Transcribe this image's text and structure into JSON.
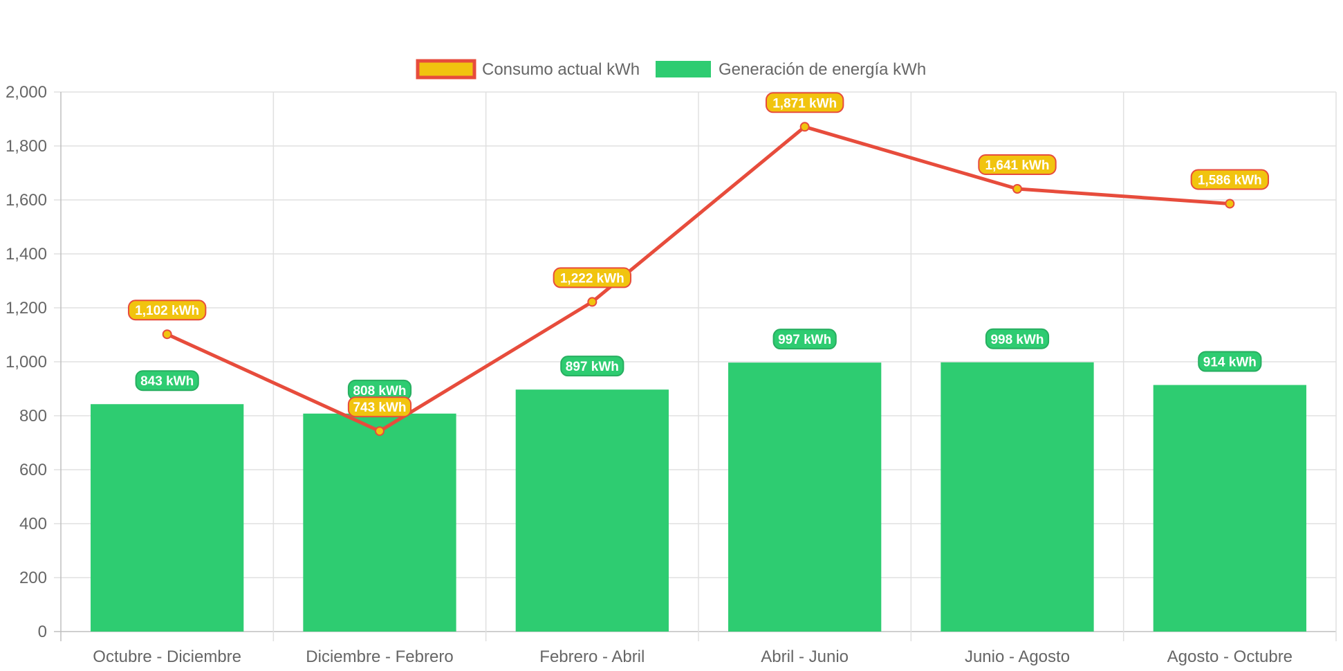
{
  "chart_data": {
    "type": "bar",
    "title": "",
    "xlabel": "",
    "ylabel": "",
    "categories": [
      "Octubre - Diciembre",
      "Diciembre - Febrero",
      "Febrero - Abril",
      "Abril - Junio",
      "Junio - Agosto",
      "Agosto - Octubre"
    ],
    "ylim": [
      0,
      2000
    ],
    "yticks": [
      0,
      200,
      400,
      600,
      800,
      1000,
      1200,
      1400,
      1600,
      1800,
      2000
    ],
    "ytick_labels": [
      "0",
      "200",
      "400",
      "600",
      "800",
      "1,000",
      "1,200",
      "1,400",
      "1,600",
      "1,800",
      "2,000"
    ],
    "grid": true,
    "legend_position": "top",
    "series": [
      {
        "name": "Consumo actual kWh",
        "type": "line",
        "values": [
          1102,
          743,
          1222,
          1871,
          1641,
          1586
        ],
        "labels": [
          "1,102 kWh",
          "743 kWh",
          "1,222 kWh",
          "1,871 kWh",
          "1,641 kWh",
          "1,586 kWh"
        ],
        "color": "#e74c3c",
        "fill_color": "#f1c40f"
      },
      {
        "name": "Generación de energía kWh",
        "type": "bar",
        "values": [
          843,
          808,
          897,
          997,
          998,
          914
        ],
        "labels": [
          "843 kWh",
          "808 kWh",
          "897 kWh",
          "997 kWh",
          "998 kWh",
          "914 kWh"
        ],
        "color": "#2ecc71",
        "border_color": "#27ae60"
      }
    ]
  }
}
